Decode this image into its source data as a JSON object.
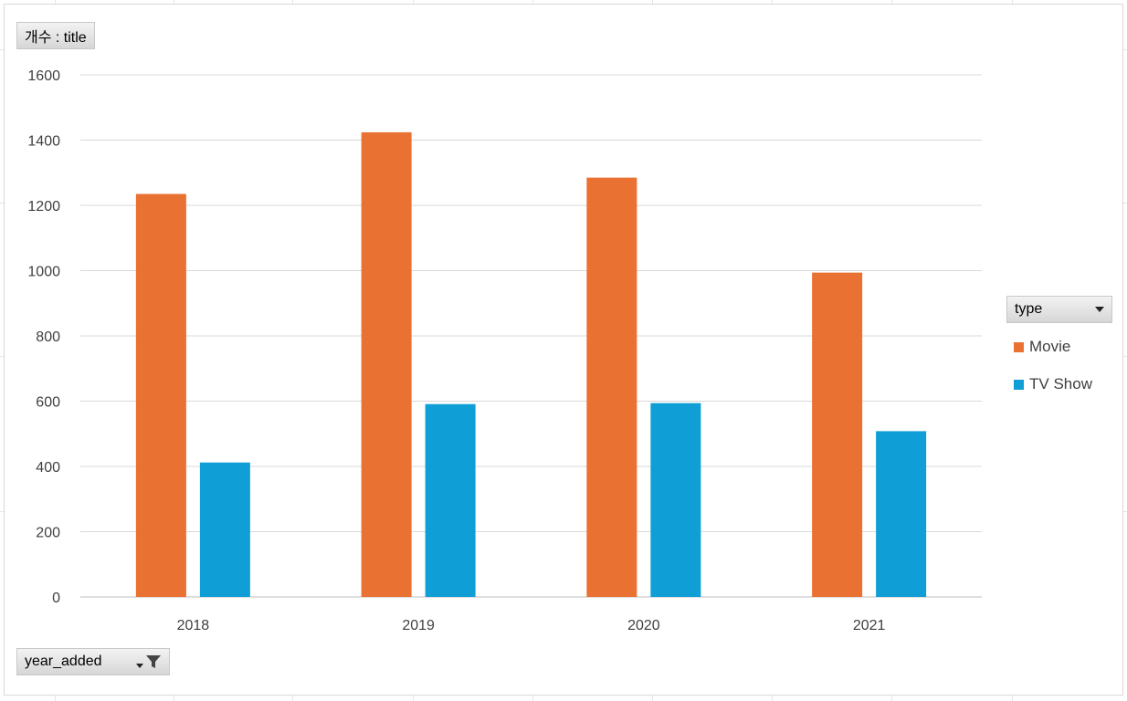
{
  "value_field": {
    "label": "개수 : title"
  },
  "axis_field": {
    "label": "year_added"
  },
  "legend_field": {
    "label": "type"
  },
  "colors": {
    "Movie": "#E97132",
    "TV Show": "#0F9ED5"
  },
  "chart_data": {
    "type": "bar",
    "categories": [
      "2018",
      "2019",
      "2020",
      "2021"
    ],
    "series": [
      {
        "name": "Movie",
        "values": [
          1235,
          1424,
          1285,
          994
        ]
      },
      {
        "name": "TV Show",
        "values": [
          412,
          591,
          594,
          508
        ]
      }
    ],
    "ylim": [
      0,
      1600
    ],
    "yticks": [
      "0",
      "200",
      "400",
      "600",
      "800",
      "1000",
      "1200",
      "1400",
      "1600"
    ],
    "grid": true,
    "legend": "right"
  }
}
